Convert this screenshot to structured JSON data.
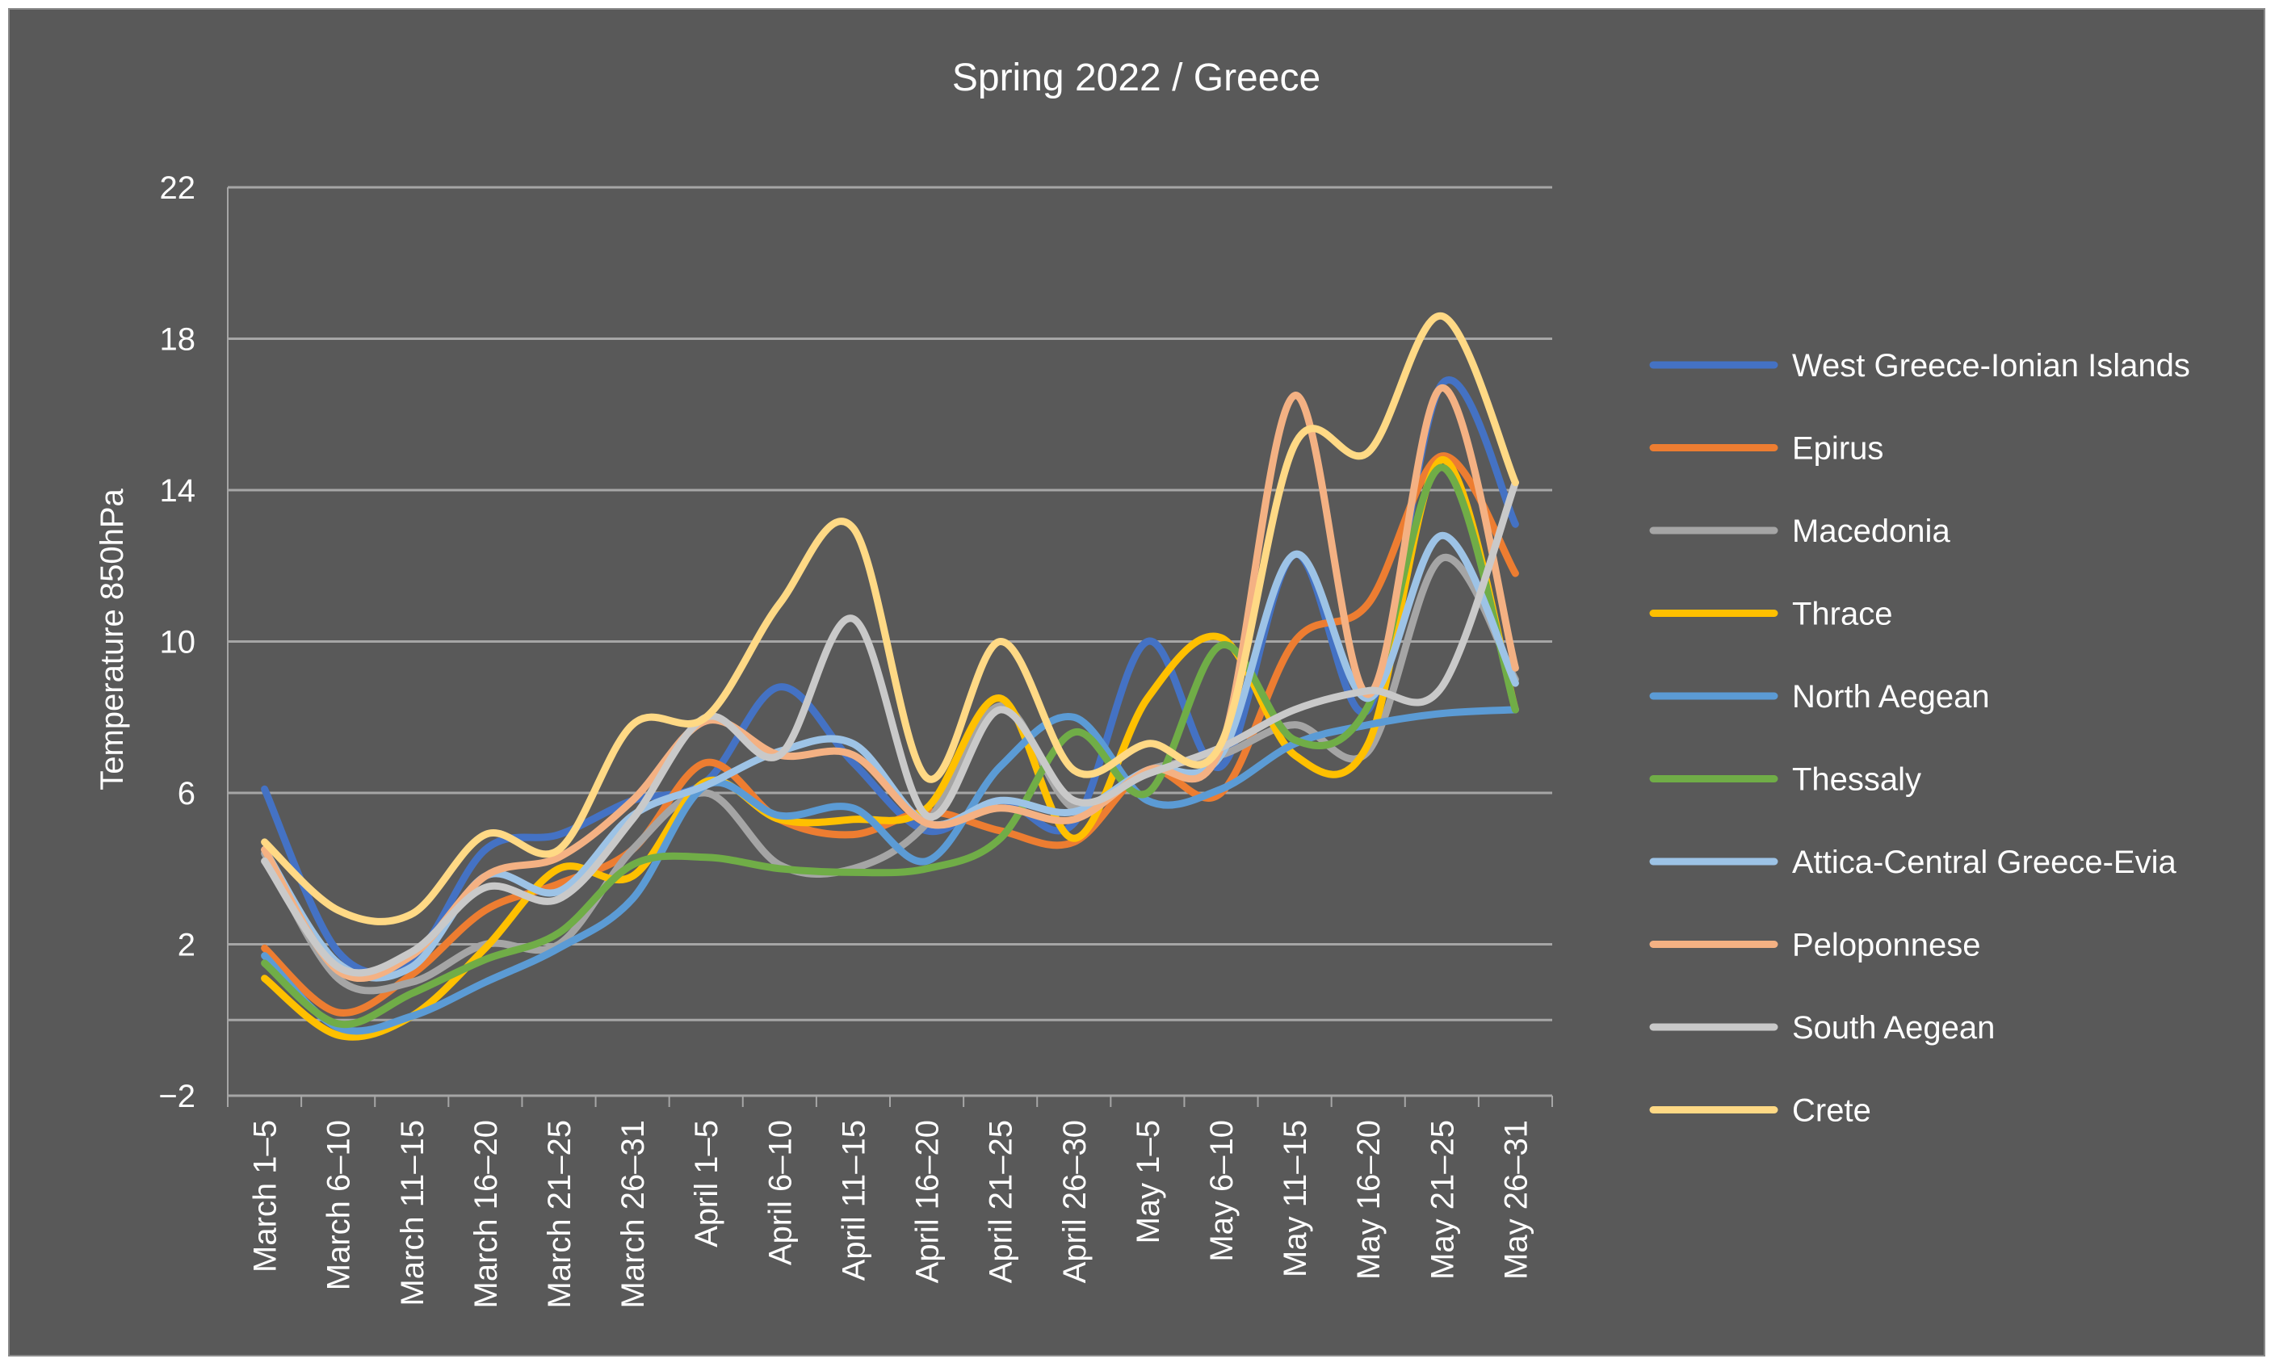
{
  "chart_data": {
    "type": "line",
    "title": "Spring 2022 / Greece",
    "xlabel": "",
    "ylabel": "Temperature 850hPa",
    "ylim": [
      -2,
      22
    ],
    "yticks": [
      22,
      18,
      14,
      10,
      6,
      2,
      -2
    ],
    "grid": true,
    "legend_position": "right",
    "smooth": true,
    "categories": [
      "March 1–5",
      "March 6–10",
      "March 11–15",
      "March 16–20",
      "March 21–25",
      "March 26–31",
      "April 1–5",
      "April 6–10",
      "April 11–15",
      "April 16–20",
      "April 21–25",
      "April 26–30",
      "May 1–5",
      "May 6–10",
      "May 11–15",
      "May 16–20",
      "May 21–25",
      "May 26–31"
    ],
    "series": [
      {
        "name": "West Greece-Ionian Islands",
        "color": "#4472C4",
        "values": [
          6.1,
          1.8,
          1.6,
          4.5,
          4.9,
          5.8,
          6.3,
          8.8,
          6.8,
          5.0,
          5.8,
          5.2,
          10.0,
          6.7,
          12.3,
          8.2,
          16.8,
          13.1
        ]
      },
      {
        "name": "Epirus",
        "color": "#ED7D31",
        "values": [
          1.9,
          0.2,
          1.2,
          2.9,
          3.6,
          4.5,
          6.8,
          5.3,
          4.9,
          5.5,
          5.0,
          4.7,
          6.6,
          6.0,
          10.0,
          11.0,
          14.9,
          11.8
        ]
      },
      {
        "name": "Macedonia",
        "color": "#A5A5A5",
        "values": [
          4.4,
          1.1,
          1.0,
          2.0,
          2.0,
          4.5,
          6.0,
          4.1,
          4.0,
          5.2,
          8.3,
          5.6,
          6.6,
          7.0,
          7.8,
          7.1,
          12.2,
          9.0
        ]
      },
      {
        "name": "Thrace",
        "color": "#FFC000",
        "values": [
          1.1,
          -0.4,
          0.1,
          1.9,
          4.0,
          3.8,
          6.3,
          5.3,
          5.3,
          5.6,
          8.5,
          4.8,
          8.5,
          10.1,
          7.0,
          7.3,
          14.8,
          8.2
        ]
      },
      {
        "name": "North Aegean",
        "color": "#5B9BD5",
        "values": [
          1.7,
          -0.2,
          0.1,
          1.0,
          1.9,
          3.2,
          6.2,
          5.4,
          5.6,
          4.2,
          6.7,
          8.0,
          5.8,
          6.1,
          7.3,
          7.8,
          8.1,
          8.2
        ]
      },
      {
        "name": "Thessaly",
        "color": "#70AD47",
        "values": [
          1.5,
          -0.1,
          0.7,
          1.6,
          2.3,
          4.1,
          4.3,
          4.0,
          3.9,
          4.0,
          4.8,
          7.6,
          6.0,
          9.9,
          7.4,
          8.3,
          14.6,
          8.2
        ]
      },
      {
        "name": "Attica-Central Greece-Evia",
        "color": "#9DC3E6",
        "values": [
          4.5,
          1.5,
          1.4,
          3.8,
          3.4,
          5.4,
          6.2,
          7.1,
          7.3,
          5.2,
          5.8,
          5.5,
          6.6,
          7.0,
          12.3,
          8.5,
          12.8,
          8.9
        ]
      },
      {
        "name": "Peloponnese",
        "color": "#F4B183",
        "values": [
          4.5,
          1.3,
          1.7,
          3.8,
          4.3,
          5.8,
          7.9,
          7.0,
          7.0,
          5.2,
          5.6,
          5.3,
          6.6,
          7.2,
          16.5,
          8.6,
          16.7,
          9.3
        ]
      },
      {
        "name": "South Aegean",
        "color": "#C9C9C9",
        "values": [
          4.2,
          1.4,
          1.8,
          3.5,
          3.2,
          5.3,
          8.0,
          7.0,
          10.6,
          5.4,
          8.2,
          5.8,
          6.5,
          7.2,
          8.2,
          8.7,
          8.8,
          14.2
        ]
      },
      {
        "name": "Crete",
        "color": "#FFD985",
        "values": [
          4.7,
          2.9,
          2.8,
          4.9,
          4.5,
          7.8,
          8.0,
          11.0,
          13.0,
          6.4,
          10.0,
          6.6,
          7.3,
          7.3,
          15.2,
          15.0,
          18.6,
          14.2
        ]
      }
    ]
  }
}
